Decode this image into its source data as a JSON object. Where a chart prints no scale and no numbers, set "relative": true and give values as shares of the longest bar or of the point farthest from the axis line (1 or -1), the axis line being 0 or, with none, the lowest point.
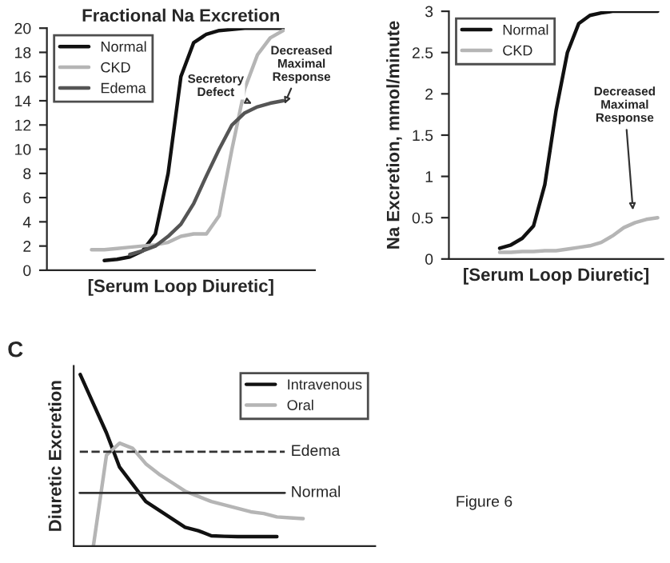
{
  "chart_data": [
    {
      "type": "line",
      "title": "Fractional Na Excretion",
      "xlabel": "[Serum Loop Diuretic]",
      "categories": [
        null,
        null,
        null,
        null,
        null,
        null,
        null,
        null,
        null,
        null,
        null,
        null,
        null,
        null,
        null,
        null,
        null,
        null,
        null,
        null,
        null
      ],
      "series": [
        {
          "name": "Normal",
          "color": "#111111",
          "values": [
            null,
            null,
            null,
            null,
            0.8,
            0.9,
            1.1,
            1.6,
            3,
            8,
            16,
            18.8,
            19.5,
            19.8,
            19.9,
            20,
            20,
            20,
            20,
            null,
            null
          ]
        },
        {
          "name": "CKD",
          "color": "#b5b5b5",
          "values": [
            null,
            null,
            null,
            1.7,
            1.7,
            1.8,
            1.9,
            2,
            2.1,
            2.3,
            2.8,
            3.0,
            3.0,
            4.5,
            10,
            15,
            17.8,
            19.2,
            19.8,
            null,
            null
          ]
        },
        {
          "name": "Edema",
          "color": "#555555",
          "values": [
            null,
            null,
            null,
            null,
            null,
            null,
            1.3,
            1.6,
            2.0,
            2.8,
            3.8,
            5.5,
            7.8,
            10,
            12,
            13,
            13.5,
            13.8,
            14,
            null,
            null
          ]
        }
      ],
      "ylim": [
        0,
        20
      ],
      "yticks": [
        0,
        2,
        4,
        6,
        8,
        10,
        12,
        14,
        16,
        18,
        20
      ],
      "tick_labels": "y",
      "legend": "top left",
      "annotations": [
        "Secretory Defect",
        "Decreased Maximal Response"
      ]
    },
    {
      "type": "line",
      "ylabel": "Na Excretion, mmol/minute",
      "xlabel": "[Serum Loop Diuretic]",
      "categories": [
        null,
        null,
        null,
        null,
        null,
        null,
        null,
        null,
        null,
        null,
        null,
        null,
        null,
        null,
        null,
        null,
        null,
        null,
        null
      ],
      "series": [
        {
          "name": "Normal",
          "color": "#111111",
          "values": [
            null,
            null,
            null,
            null,
            0.13,
            0.17,
            0.25,
            0.4,
            0.9,
            1.8,
            2.5,
            2.85,
            2.95,
            2.98,
            3,
            3,
            3,
            3,
            3
          ]
        },
        {
          "name": "CKD",
          "color": "#b5b5b5",
          "values": [
            null,
            null,
            null,
            null,
            0.08,
            0.08,
            0.09,
            0.09,
            0.1,
            0.1,
            0.12,
            0.14,
            0.16,
            0.2,
            0.28,
            0.38,
            0.44,
            0.48,
            0.5
          ]
        }
      ],
      "ylim": [
        0,
        3
      ],
      "yticks": [
        0,
        0.5,
        1,
        1.5,
        2,
        2.5,
        3
      ],
      "tick_labels": "y",
      "legend": "top left",
      "annotations": [
        "Decreased Maximal Response"
      ]
    },
    {
      "type": "line",
      "ylabel": "Diuretic Excretion",
      "relative": true,
      "categories": [
        null,
        null,
        null,
        null,
        null,
        null,
        null,
        null,
        null,
        null,
        null,
        null,
        null,
        null,
        null,
        null,
        null,
        null,
        null,
        null,
        null,
        null,
        null
      ],
      "series": [
        {
          "name": "Intravenous",
          "color": "#111111",
          "values": [
            1.0,
            0.83,
            0.66,
            0.46,
            0.36,
            0.26,
            0.21,
            0.16,
            0.11,
            0.09,
            0.06,
            0.057,
            0.055,
            0.055,
            0.055,
            0.055,
            null,
            null,
            null,
            null,
            null,
            null,
            null
          ]
        },
        {
          "name": "Oral",
          "color": "#b5b5b5",
          "values": [
            null,
            0,
            0.53,
            0.6,
            0.57,
            0.48,
            0.42,
            0.37,
            0.32,
            0.29,
            0.26,
            0.24,
            0.22,
            0.2,
            0.19,
            0.17,
            0.165,
            0.16,
            null,
            null,
            null,
            null,
            null
          ]
        }
      ],
      "ref_lines": [
        {
          "axis": "y",
          "value": 0.55,
          "label": "Edema",
          "color": "#333333",
          "line_style": "dashed"
        },
        {
          "axis": "y",
          "value": 0.31,
          "label": "Normal",
          "color": "#333333",
          "line_style": "solid"
        }
      ],
      "tick_labels": false,
      "legend": "top right",
      "annotations": [
        "C",
        "Figure 6"
      ]
    }
  ]
}
